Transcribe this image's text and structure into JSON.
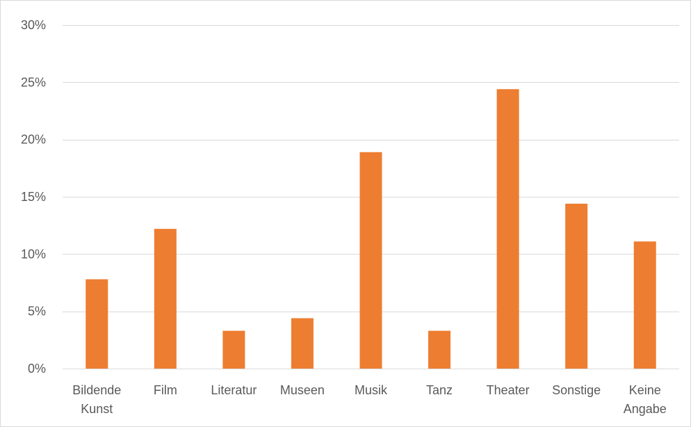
{
  "chart_data": {
    "type": "bar",
    "title": "",
    "xlabel": "",
    "ylabel": "",
    "categories": [
      [
        "Bildende",
        "Kunst"
      ],
      [
        "Film"
      ],
      [
        "Literatur"
      ],
      [
        "Museen"
      ],
      [
        "Musik"
      ],
      [
        "Tanz"
      ],
      [
        "Theater"
      ],
      [
        "Sonstige"
      ],
      [
        "Keine",
        "Angabe"
      ]
    ],
    "values": [
      7.8,
      12.2,
      3.3,
      4.4,
      18.9,
      3.3,
      24.4,
      14.4,
      11.1
    ],
    "ylim": [
      0,
      30
    ],
    "yticks": [
      0,
      5,
      10,
      15,
      20,
      25,
      30
    ],
    "ytick_labels": [
      "0%",
      "5%",
      "10%",
      "15%",
      "20%",
      "25%",
      "30%"
    ],
    "grid": true,
    "legend": "none",
    "colors": {
      "bar": "#ED7D31",
      "grid": "#d9d9d9",
      "text": "#595959"
    }
  }
}
